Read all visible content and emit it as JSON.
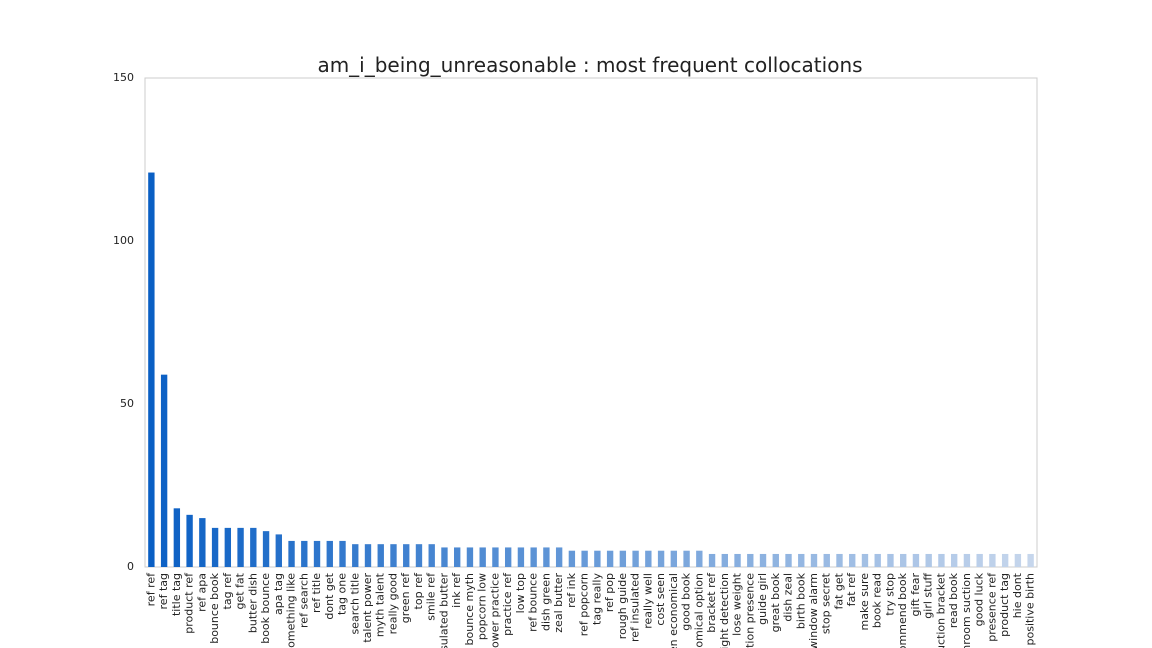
{
  "chart_data": {
    "type": "bar",
    "title": "am_i_being_unreasonable : most frequent collocations",
    "xlabel": "",
    "ylabel": "",
    "ylim": [
      0,
      150
    ],
    "yticks": [
      0,
      50,
      100,
      150
    ],
    "grid": false,
    "legend": "none",
    "color_gradient": [
      "#0a5fc4",
      "#c6d6ec"
    ],
    "categories": [
      "ref ref",
      "ref tag",
      "title tag",
      "product ref",
      "ref apa",
      "bounce book",
      "tag ref",
      "get fat",
      "butter dish",
      "book bounce",
      "apa tag",
      "something like",
      "ref search",
      "ref title",
      "dont get",
      "tag one",
      "search title",
      "talent power",
      "myth talent",
      "really good",
      "green ref",
      "top ref",
      "smile ref",
      "nsulated butter",
      "ink ref",
      "bounce myth",
      "popcorn low",
      "power practice",
      "practice ref",
      "low top",
      "ref bounce",
      "dish green",
      "zeal butter",
      "ref ink",
      "ref popcorn",
      "tag really",
      "ref pop",
      "rough guide",
      "ref insulated",
      "really well",
      "cost seen",
      "en economical",
      "good book",
      "nomical option",
      "bracket ref",
      "llight detection",
      "lose weight",
      "ction presence",
      "guide girl",
      "great book",
      "dish zeal",
      "birth book",
      "window alarm",
      "stop secret",
      "fat get",
      "fat ref",
      "make sure",
      "book read",
      "try stop",
      "ommend book",
      "gift fear",
      "girl stuff",
      "uction bracket",
      "read book",
      "throom suction",
      "good luck",
      "presence ref",
      "product tag",
      "hie dont",
      "positive birth"
    ],
    "values": [
      121,
      59,
      18,
      16,
      15,
      12,
      12,
      12,
      12,
      11,
      10,
      8,
      8,
      8,
      8,
      8,
      7,
      7,
      7,
      7,
      7,
      7,
      7,
      6,
      6,
      6,
      6,
      6,
      6,
      6,
      6,
      6,
      6,
      5,
      5,
      5,
      5,
      5,
      5,
      5,
      5,
      5,
      5,
      5,
      4,
      4,
      4,
      4,
      4,
      4,
      4,
      4,
      4,
      4,
      4,
      4,
      4,
      4,
      4,
      4,
      4,
      4,
      4,
      4,
      4,
      4,
      4,
      4,
      4,
      4
    ]
  }
}
